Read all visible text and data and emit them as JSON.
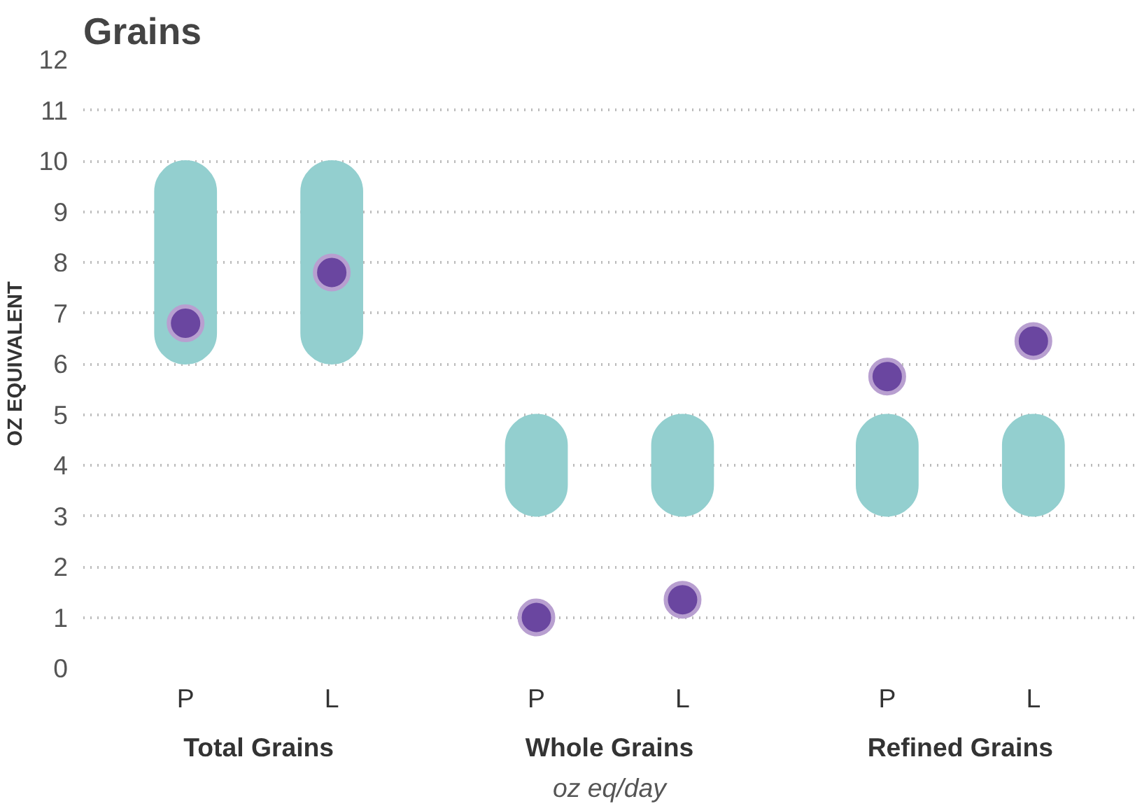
{
  "chart_data": {
    "type": "bar",
    "title": "Grains",
    "ylabel": "OZ EQUIVALENT",
    "xlabel": "oz eq/day",
    "categories": [
      "P",
      "L",
      "P",
      "L",
      "P",
      "L"
    ],
    "annotations": [
      "Total Grains",
      "Whole Grains",
      "Refined Grains"
    ],
    "series": [
      {
        "color": "#93cfcf",
        "values": [
          4,
          4,
          2,
          2,
          2,
          2
        ],
        "base": [
          6,
          6,
          3,
          3,
          3,
          3
        ]
      },
      {
        "type": "scatter",
        "color": "#6a46a0",
        "marker": "circle",
        "values": [
          6.8,
          7.8,
          1.0,
          1.35,
          5.75,
          6.45
        ]
      }
    ],
    "ylim": [
      0,
      12
    ],
    "yticks": [
      0,
      1,
      2,
      3,
      4,
      5,
      6,
      7,
      8,
      9,
      10,
      11,
      12
    ],
    "grid": "y"
  }
}
